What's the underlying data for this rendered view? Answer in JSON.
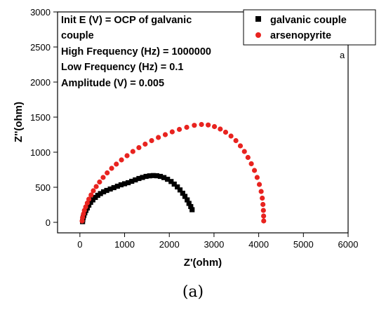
{
  "caption": "(a)",
  "chart_data": {
    "type": "scatter",
    "xlabel": "Z'(ohm)",
    "ylabel": "Z''(ohm)",
    "xlim": [
      -500,
      6000
    ],
    "ylim": [
      -150,
      3000
    ],
    "xticks": [
      0,
      1000,
      2000,
      3000,
      4000,
      5000,
      6000
    ],
    "yticks": [
      0,
      500,
      1000,
      1500,
      2000,
      2500,
      3000
    ],
    "grid": false,
    "legend_position": "top-right",
    "panel_label": "a",
    "annotations": [
      "Init E (V) = OCP of galvanic",
      "couple",
      "High Frequency (Hz) = 1000000",
      "Low Frequency (Hz) = 0.1",
      "Amplitude (V) = 0.005"
    ],
    "series": [
      {
        "name": "galvanic couple",
        "marker": "square",
        "color": "#000000",
        "points": [
          [
            60,
            10
          ],
          [
            65,
            40
          ],
          [
            75,
            70
          ],
          [
            90,
            100
          ],
          [
            110,
            135
          ],
          [
            135,
            170
          ],
          [
            165,
            205
          ],
          [
            200,
            245
          ],
          [
            240,
            285
          ],
          [
            290,
            320
          ],
          [
            345,
            355
          ],
          [
            400,
            385
          ],
          [
            460,
            410
          ],
          [
            530,
            435
          ],
          [
            600,
            455
          ],
          [
            680,
            475
          ],
          [
            760,
            495
          ],
          [
            840,
            515
          ],
          [
            920,
            535
          ],
          [
            1000,
            550
          ],
          [
            1080,
            565
          ],
          [
            1160,
            585
          ],
          [
            1240,
            605
          ],
          [
            1320,
            625
          ],
          [
            1400,
            640
          ],
          [
            1480,
            655
          ],
          [
            1560,
            663
          ],
          [
            1640,
            667
          ],
          [
            1720,
            664
          ],
          [
            1800,
            655
          ],
          [
            1880,
            638
          ],
          [
            1960,
            614
          ],
          [
            2040,
            582
          ],
          [
            2110,
            545
          ],
          [
            2180,
            505
          ],
          [
            2240,
            462
          ],
          [
            2300,
            415
          ],
          [
            2350,
            370
          ],
          [
            2400,
            320
          ],
          [
            2440,
            270
          ],
          [
            2480,
            225
          ],
          [
            2510,
            180
          ]
        ]
      },
      {
        "name": "arsenopyrite",
        "marker": "circle",
        "color": "#e8231f",
        "points": [
          [
            50,
            20
          ],
          [
            60,
            70
          ],
          [
            80,
            120
          ],
          [
            100,
            170
          ],
          [
            130,
            220
          ],
          [
            165,
            275
          ],
          [
            200,
            330
          ],
          [
            250,
            390
          ],
          [
            300,
            450
          ],
          [
            365,
            510
          ],
          [
            440,
            575
          ],
          [
            520,
            640
          ],
          [
            610,
            705
          ],
          [
            710,
            770
          ],
          [
            815,
            830
          ],
          [
            930,
            890
          ],
          [
            1055,
            950
          ],
          [
            1185,
            1010
          ],
          [
            1320,
            1065
          ],
          [
            1460,
            1115
          ],
          [
            1605,
            1165
          ],
          [
            1755,
            1210
          ],
          [
            1910,
            1250
          ],
          [
            2065,
            1290
          ],
          [
            2225,
            1325
          ],
          [
            2390,
            1355
          ],
          [
            2560,
            1383
          ],
          [
            2720,
            1395
          ],
          [
            2870,
            1388
          ],
          [
            3010,
            1365
          ],
          [
            3140,
            1330
          ],
          [
            3260,
            1285
          ],
          [
            3380,
            1230
          ],
          [
            3490,
            1165
          ],
          [
            3590,
            1090
          ],
          [
            3680,
            1010
          ],
          [
            3760,
            925
          ],
          [
            3835,
            835
          ],
          [
            3905,
            740
          ],
          [
            3965,
            640
          ],
          [
            4015,
            540
          ],
          [
            4055,
            440
          ],
          [
            4080,
            345
          ],
          [
            4095,
            255
          ],
          [
            4105,
            170
          ],
          [
            4110,
            90
          ],
          [
            4112,
            20
          ]
        ]
      }
    ]
  }
}
